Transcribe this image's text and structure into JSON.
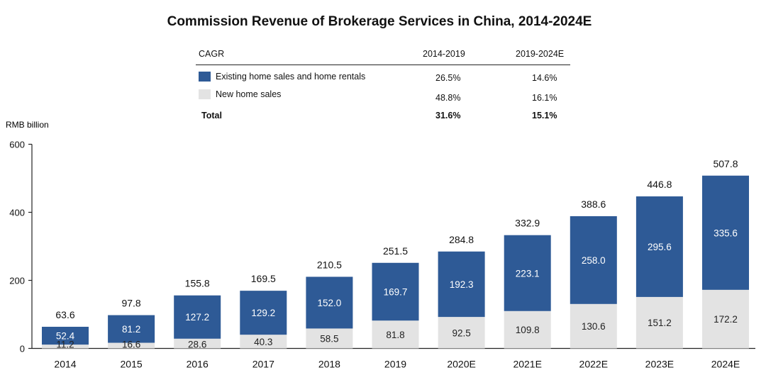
{
  "chart_data": {
    "type": "bar",
    "stacked": true,
    "title": "Commission Revenue of Brokerage Services in China, 2014-2024E",
    "ylabel": "RMB billion",
    "xlabel": "",
    "ylim": [
      0,
      600
    ],
    "yticks": [
      "0",
      "200",
      "400",
      "600"
    ],
    "categories": [
      "2014",
      "2015",
      "2016",
      "2017",
      "2018",
      "2019",
      "2020E",
      "2021E",
      "2022E",
      "2023E",
      "2024E"
    ],
    "series": [
      {
        "name": "New home sales",
        "color": "#e3e3e3",
        "values": [
          11.2,
          16.6,
          28.6,
          40.3,
          58.5,
          81.8,
          92.5,
          109.8,
          130.6,
          151.2,
          172.2
        ],
        "labels": [
          "11.2",
          "16.6",
          "28.6",
          "40.3",
          "58.5",
          "81.8",
          "92.5",
          "109.8",
          "130.6",
          "151.2",
          "172.2"
        ]
      },
      {
        "name": "Existing home sales and home rentals",
        "color": "#2e5a96",
        "values": [
          52.4,
          81.2,
          127.2,
          129.2,
          152.0,
          169.7,
          192.3,
          223.1,
          258.0,
          295.6,
          335.6
        ],
        "labels": [
          "52.4",
          "81.2",
          "127.2",
          "129.2",
          "152.0",
          "169.7",
          "192.3",
          "223.1",
          "258.0",
          "295.6",
          "335.6"
        ]
      }
    ],
    "totals": [
      63.6,
      97.8,
      155.8,
      169.5,
      210.5,
      251.5,
      284.8,
      332.9,
      388.6,
      446.8,
      507.8
    ],
    "total_labels": [
      "63.6",
      "97.8",
      "155.8",
      "169.5",
      "210.5",
      "251.5",
      "284.8",
      "332.9",
      "388.6",
      "446.8",
      "507.8"
    ]
  },
  "cagr": {
    "header": "CAGR",
    "col1": "2014-2019",
    "col2": "2019-2024E",
    "rows": [
      {
        "label": "Existing home sales and home rentals",
        "v1": "26.5%",
        "v2": "14.6%",
        "swatch": "#2e5a96"
      },
      {
        "label": "New home sales",
        "v1": "48.8%",
        "v2": "16.1%",
        "swatch": "#e3e3e3"
      }
    ],
    "total": {
      "label": "Total",
      "v1": "31.6%",
      "v2": "15.1%"
    }
  }
}
